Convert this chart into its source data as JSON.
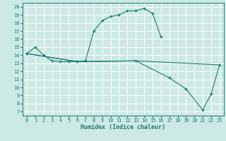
{
  "xlabel": "Humidex (Indice chaleur)",
  "bg_color": "#cce9e5",
  "line_color": "#1a7a6e",
  "grid_color": "#ffffff",
  "xlim": [
    -0.5,
    23.5
  ],
  "ylim": [
    6.5,
    20.5
  ],
  "xticks": [
    0,
    1,
    2,
    3,
    4,
    5,
    6,
    7,
    8,
    9,
    10,
    11,
    12,
    13,
    14,
    15,
    16,
    17,
    18,
    19,
    20,
    21,
    22,
    23
  ],
  "yticks": [
    7,
    8,
    9,
    10,
    11,
    12,
    13,
    14,
    15,
    16,
    17,
    18,
    19,
    20
  ],
  "s1x": [
    0,
    1,
    2,
    3,
    4,
    5,
    6,
    7,
    8,
    9,
    10,
    11,
    12,
    13,
    14,
    15,
    16
  ],
  "s1y": [
    14.2,
    15.0,
    14.0,
    13.3,
    13.2,
    13.2,
    13.2,
    13.3,
    17.0,
    18.3,
    18.8,
    19.0,
    19.5,
    19.5,
    19.8,
    19.2,
    16.3
  ],
  "s2x": [
    0,
    6,
    13,
    17,
    19,
    21,
    22,
    23
  ],
  "s2y": [
    14.2,
    13.2,
    13.3,
    11.2,
    9.8,
    7.2,
    9.2,
    12.8
  ],
  "s3x": [
    0,
    6,
    13,
    23
  ],
  "s3y": [
    14.2,
    13.2,
    13.3,
    12.8
  ]
}
